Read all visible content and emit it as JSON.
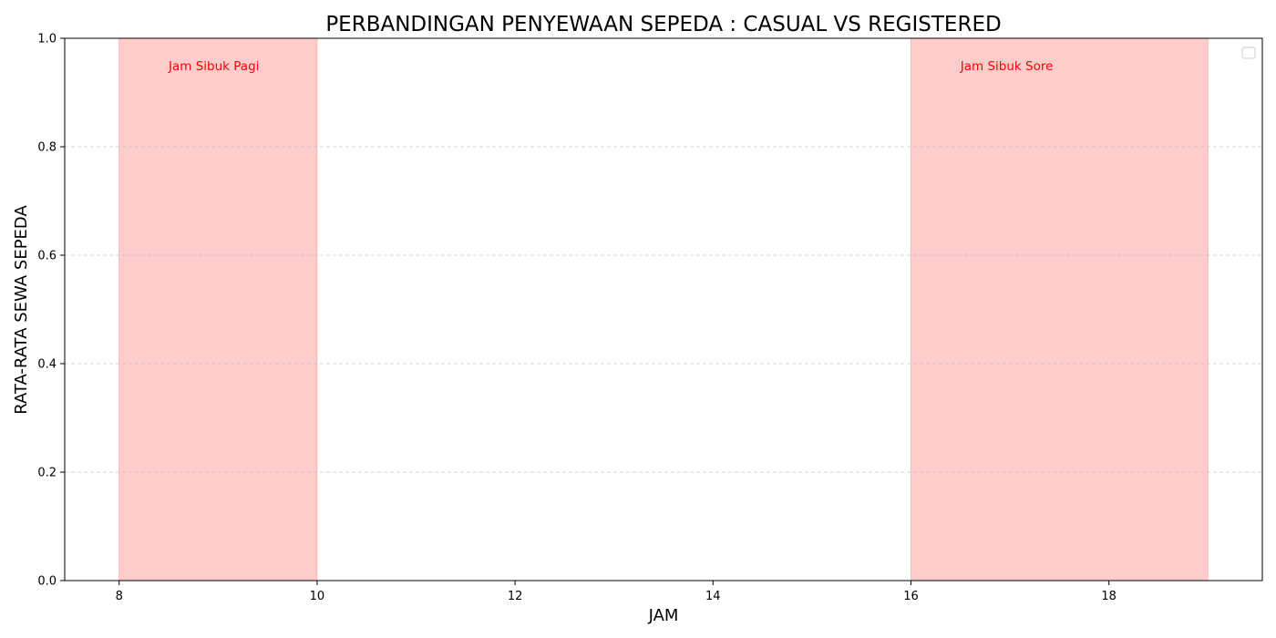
{
  "chart_data": {
    "type": "line",
    "title": "PERBANDINGAN PENYEWAAN SEPEDA : CASUAL VS REGISTERED",
    "xlabel": "JAM",
    "ylabel": "RATA-RATA SEWA SEPEDA",
    "xlim": [
      7.45,
      19.55
    ],
    "ylim": [
      0,
      1
    ],
    "x_ticks": [
      8,
      10,
      12,
      14,
      16,
      18
    ],
    "y_ticks": [
      0.0,
      0.2,
      0.4,
      0.6,
      0.8,
      1.0
    ],
    "y_tick_labels": [
      "0.0",
      "0.2",
      "0.4",
      "0.6",
      "0.8",
      "1.0"
    ],
    "grid": {
      "axis": "y",
      "style": "dashed"
    },
    "series": [],
    "legend": {
      "placement": "top-right",
      "entries": []
    },
    "shaded_regions": [
      {
        "x_start": 8,
        "x_end": 10,
        "label": "Jam Sibuk Pagi",
        "label_x": 8.5,
        "label_y": 0.95,
        "color": "#ff9999",
        "label_color": "#ff0000"
      },
      {
        "x_start": 16,
        "x_end": 19,
        "label": "Jam Sibuk Sore",
        "label_x": 16.5,
        "label_y": 0.95,
        "color": "#ff9999",
        "label_color": "#ff0000"
      }
    ]
  }
}
